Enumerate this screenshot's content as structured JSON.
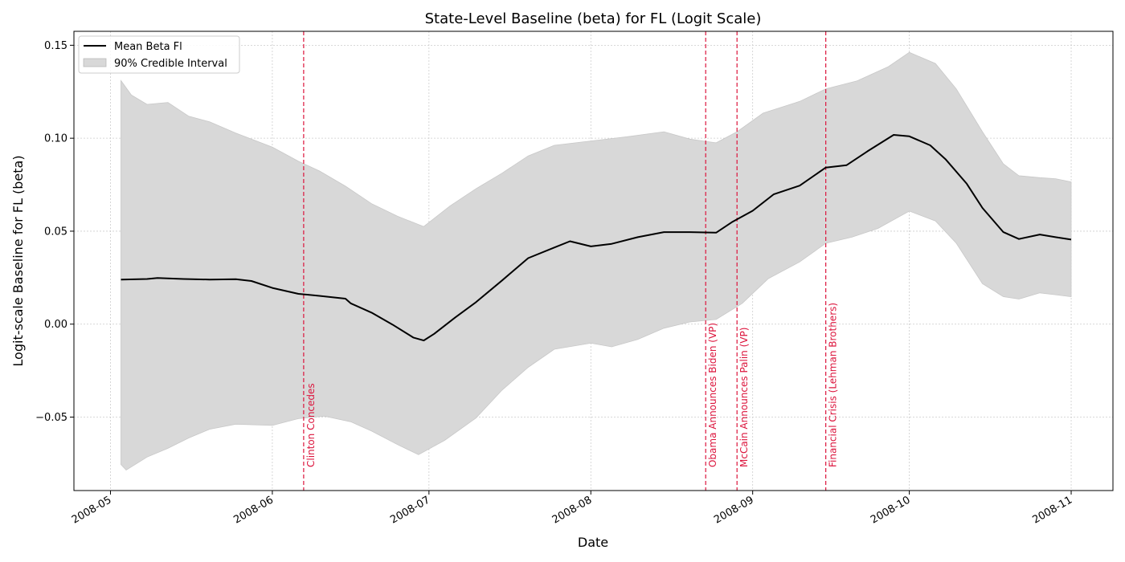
{
  "chart_data": {
    "type": "line",
    "title": "State-Level Baseline (beta) for FL (Logit Scale)",
    "xlabel": "Date",
    "ylabel": "Logit-scale Baseline for FL (beta)",
    "x_type": "date",
    "xlim": [
      "2008-04-24",
      "2008-11-09"
    ],
    "ylim": [
      -0.0895,
      0.1575
    ],
    "x_ticks": [
      "2008-05-01",
      "2008-06-01",
      "2008-07-01",
      "2008-08-01",
      "2008-09-01",
      "2008-10-01",
      "2008-11-01"
    ],
    "x_tick_labels": [
      "2008-05",
      "2008-06",
      "2008-07",
      "2008-08",
      "2008-09",
      "2008-10",
      "2008-11"
    ],
    "y_ticks": [
      -0.05,
      0.0,
      0.05,
      0.1,
      0.15
    ],
    "y_tick_labels": [
      "−0.05",
      "0.00",
      "0.05",
      "0.10",
      "0.15"
    ],
    "grid": true,
    "legend_position": "upper-left",
    "colors": {
      "mean": "#000000",
      "band": "#d8d8d8",
      "event": "#dc143c",
      "grid": "#cccccc"
    },
    "series": [
      {
        "name": "Mean Beta Fl",
        "kind": "line",
        "points": [
          [
            "2008-05-03",
            0.024
          ],
          [
            "2008-05-08",
            0.0243
          ],
          [
            "2008-05-10",
            0.0248
          ],
          [
            "2008-05-15",
            0.0243
          ],
          [
            "2008-05-20",
            0.024
          ],
          [
            "2008-05-25",
            0.0242
          ],
          [
            "2008-05-28",
            0.0232
          ],
          [
            "2008-06-01",
            0.0195
          ],
          [
            "2008-06-06",
            0.0163
          ],
          [
            "2008-06-10",
            0.0152
          ],
          [
            "2008-06-15",
            0.0137
          ],
          [
            "2008-06-16",
            0.0112
          ],
          [
            "2008-06-20",
            0.0062
          ],
          [
            "2008-06-24",
            -0.0002
          ],
          [
            "2008-06-28",
            -0.0072
          ],
          [
            "2008-06-30",
            -0.0088
          ],
          [
            "2008-07-02",
            -0.0052
          ],
          [
            "2008-07-06",
            0.0035
          ],
          [
            "2008-07-10",
            0.0118
          ],
          [
            "2008-07-15",
            0.0235
          ],
          [
            "2008-07-20",
            0.0355
          ],
          [
            "2008-07-25",
            0.0412
          ],
          [
            "2008-07-28",
            0.0446
          ],
          [
            "2008-08-01",
            0.0418
          ],
          [
            "2008-08-05",
            0.0432
          ],
          [
            "2008-08-10",
            0.0468
          ],
          [
            "2008-08-15",
            0.0495
          ],
          [
            "2008-08-20",
            0.0495
          ],
          [
            "2008-08-25",
            0.0492
          ],
          [
            "2008-08-28",
            0.0548
          ],
          [
            "2008-09-01",
            0.061
          ],
          [
            "2008-09-05",
            0.0698
          ],
          [
            "2008-09-10",
            0.0745
          ],
          [
            "2008-09-15",
            0.0842
          ],
          [
            "2008-09-19",
            0.0855
          ],
          [
            "2008-09-23",
            0.093
          ],
          [
            "2008-09-28",
            0.1018
          ],
          [
            "2008-10-01",
            0.101
          ],
          [
            "2008-10-05",
            0.0962
          ],
          [
            "2008-10-08",
            0.0885
          ],
          [
            "2008-10-12",
            0.0755
          ],
          [
            "2008-10-15",
            0.0625
          ],
          [
            "2008-10-19",
            0.0495
          ],
          [
            "2008-10-22",
            0.0458
          ],
          [
            "2008-10-26",
            0.0482
          ],
          [
            "2008-10-29",
            0.0468
          ],
          [
            "2008-11-01",
            0.0455
          ]
        ]
      },
      {
        "name": "90% Credible Interval",
        "kind": "band",
        "upper": [
          [
            "2008-05-03",
            0.131
          ],
          [
            "2008-05-05",
            0.1232
          ],
          [
            "2008-05-08",
            0.1182
          ],
          [
            "2008-05-12",
            0.1192
          ],
          [
            "2008-05-16",
            0.1118
          ],
          [
            "2008-05-20",
            0.1088
          ],
          [
            "2008-05-25",
            0.1028
          ],
          [
            "2008-06-01",
            0.0952
          ],
          [
            "2008-06-06",
            0.0876
          ],
          [
            "2008-06-10",
            0.0824
          ],
          [
            "2008-06-15",
            0.0742
          ],
          [
            "2008-06-20",
            0.0648
          ],
          [
            "2008-06-25",
            0.058
          ],
          [
            "2008-06-30",
            0.0525
          ],
          [
            "2008-07-05",
            0.0635
          ],
          [
            "2008-07-10",
            0.0728
          ],
          [
            "2008-07-15",
            0.0812
          ],
          [
            "2008-07-20",
            0.0905
          ],
          [
            "2008-07-25",
            0.0962
          ],
          [
            "2008-08-01",
            0.0985
          ],
          [
            "2008-08-08",
            0.1008
          ],
          [
            "2008-08-15",
            0.1035
          ],
          [
            "2008-08-20",
            0.0995
          ],
          [
            "2008-08-25",
            0.0975
          ],
          [
            "2008-08-29",
            0.1035
          ],
          [
            "2008-09-03",
            0.1135
          ],
          [
            "2008-09-10",
            0.1198
          ],
          [
            "2008-09-15",
            0.1265
          ],
          [
            "2008-09-21",
            0.1308
          ],
          [
            "2008-09-27",
            0.1385
          ],
          [
            "2008-10-01",
            0.1462
          ],
          [
            "2008-10-06",
            0.1402
          ],
          [
            "2008-10-10",
            0.1265
          ],
          [
            "2008-10-15",
            0.1035
          ],
          [
            "2008-10-19",
            0.0862
          ],
          [
            "2008-10-22",
            0.0798
          ],
          [
            "2008-10-26",
            0.0788
          ],
          [
            "2008-10-29",
            0.0782
          ],
          [
            "2008-11-01",
            0.0765
          ]
        ],
        "lower": [
          [
            "2008-05-03",
            -0.0755
          ],
          [
            "2008-05-04",
            -0.0785
          ],
          [
            "2008-05-08",
            -0.0715
          ],
          [
            "2008-05-12",
            -0.0668
          ],
          [
            "2008-05-16",
            -0.0612
          ],
          [
            "2008-05-20",
            -0.0565
          ],
          [
            "2008-05-25",
            -0.0538
          ],
          [
            "2008-06-01",
            -0.0545
          ],
          [
            "2008-06-06",
            -0.0508
          ],
          [
            "2008-06-11",
            -0.0495
          ],
          [
            "2008-06-16",
            -0.0525
          ],
          [
            "2008-06-20",
            -0.0575
          ],
          [
            "2008-06-25",
            -0.0648
          ],
          [
            "2008-06-29",
            -0.0702
          ],
          [
            "2008-07-04",
            -0.0625
          ],
          [
            "2008-07-10",
            -0.0505
          ],
          [
            "2008-07-15",
            -0.0355
          ],
          [
            "2008-07-20",
            -0.0232
          ],
          [
            "2008-07-25",
            -0.0135
          ],
          [
            "2008-08-01",
            -0.0102
          ],
          [
            "2008-08-05",
            -0.0122
          ],
          [
            "2008-08-10",
            -0.0082
          ],
          [
            "2008-08-15",
            -0.0022
          ],
          [
            "2008-08-20",
            0.0012
          ],
          [
            "2008-08-25",
            0.0025
          ],
          [
            "2008-08-30",
            0.0112
          ],
          [
            "2008-09-04",
            0.0245
          ],
          [
            "2008-09-10",
            0.0335
          ],
          [
            "2008-09-15",
            0.0435
          ],
          [
            "2008-09-20",
            0.0468
          ],
          [
            "2008-09-25",
            0.0515
          ],
          [
            "2008-10-01",
            0.0608
          ],
          [
            "2008-10-06",
            0.0555
          ],
          [
            "2008-10-10",
            0.0435
          ],
          [
            "2008-10-15",
            0.0218
          ],
          [
            "2008-10-19",
            0.0148
          ],
          [
            "2008-10-22",
            0.0135
          ],
          [
            "2008-10-26",
            0.0168
          ],
          [
            "2008-10-29",
            0.0158
          ],
          [
            "2008-11-01",
            0.0148
          ]
        ]
      }
    ],
    "events": [
      {
        "date": "2008-06-07",
        "label": "Clinton Concedes"
      },
      {
        "date": "2008-08-23",
        "label": "Obama Announces Biden (VP)"
      },
      {
        "date": "2008-08-29",
        "label": "McCain Announces Palin (VP)"
      },
      {
        "date": "2008-09-15",
        "label": "Financial Crisis (Lehman Brothers)"
      }
    ]
  }
}
